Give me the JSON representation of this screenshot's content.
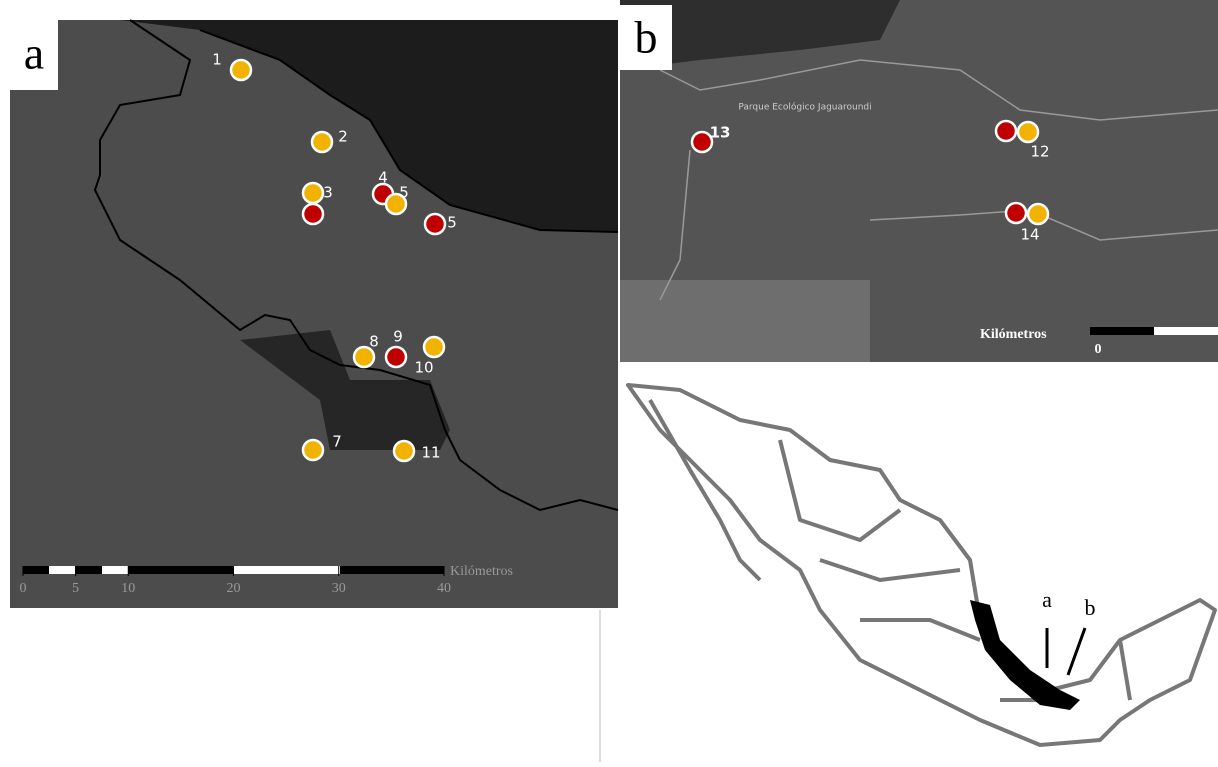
{
  "panel_a": {
    "letter": "a",
    "sites": [
      {
        "label": "1",
        "markers": [
          "#f2b300"
        ]
      },
      {
        "label": "2",
        "markers": [
          "#f2b300"
        ]
      },
      {
        "label": "3",
        "markers": [
          "#f2b300",
          "#c00000"
        ]
      },
      {
        "label": "4",
        "markers": [
          "#c00000"
        ]
      },
      {
        "label": "5",
        "markers": [
          "#f2b300"
        ]
      },
      {
        "label": "5",
        "markers": [
          "#c00000"
        ]
      },
      {
        "label": "8",
        "markers": [
          "#f2b300"
        ]
      },
      {
        "label": "9",
        "markers": [
          "#c00000"
        ]
      },
      {
        "label": "10",
        "markers": [
          "#f2b300"
        ]
      },
      {
        "label": "7",
        "markers": [
          "#f2b300"
        ]
      },
      {
        "label": "11",
        "markers": [
          "#f2b300"
        ]
      }
    ],
    "scale": {
      "unit": "Kilómetros",
      "ticks": [
        0,
        5,
        10,
        20,
        30,
        40
      ]
    }
  },
  "panel_b": {
    "letter": "b",
    "place_label": "Parque Ecológico Jaguaroundi",
    "sites": [
      {
        "label": "13",
        "markers": [
          "#c00000"
        ]
      },
      {
        "label": "12",
        "markers": [
          "#c00000",
          "#f2b300"
        ]
      },
      {
        "label": "14",
        "markers": [
          "#c00000",
          "#f2b300"
        ]
      }
    ],
    "scale": {
      "unit": "Kilómetros",
      "ticks": [
        0
      ]
    }
  },
  "inset_map": {
    "labels": [
      "a",
      "b"
    ]
  }
}
